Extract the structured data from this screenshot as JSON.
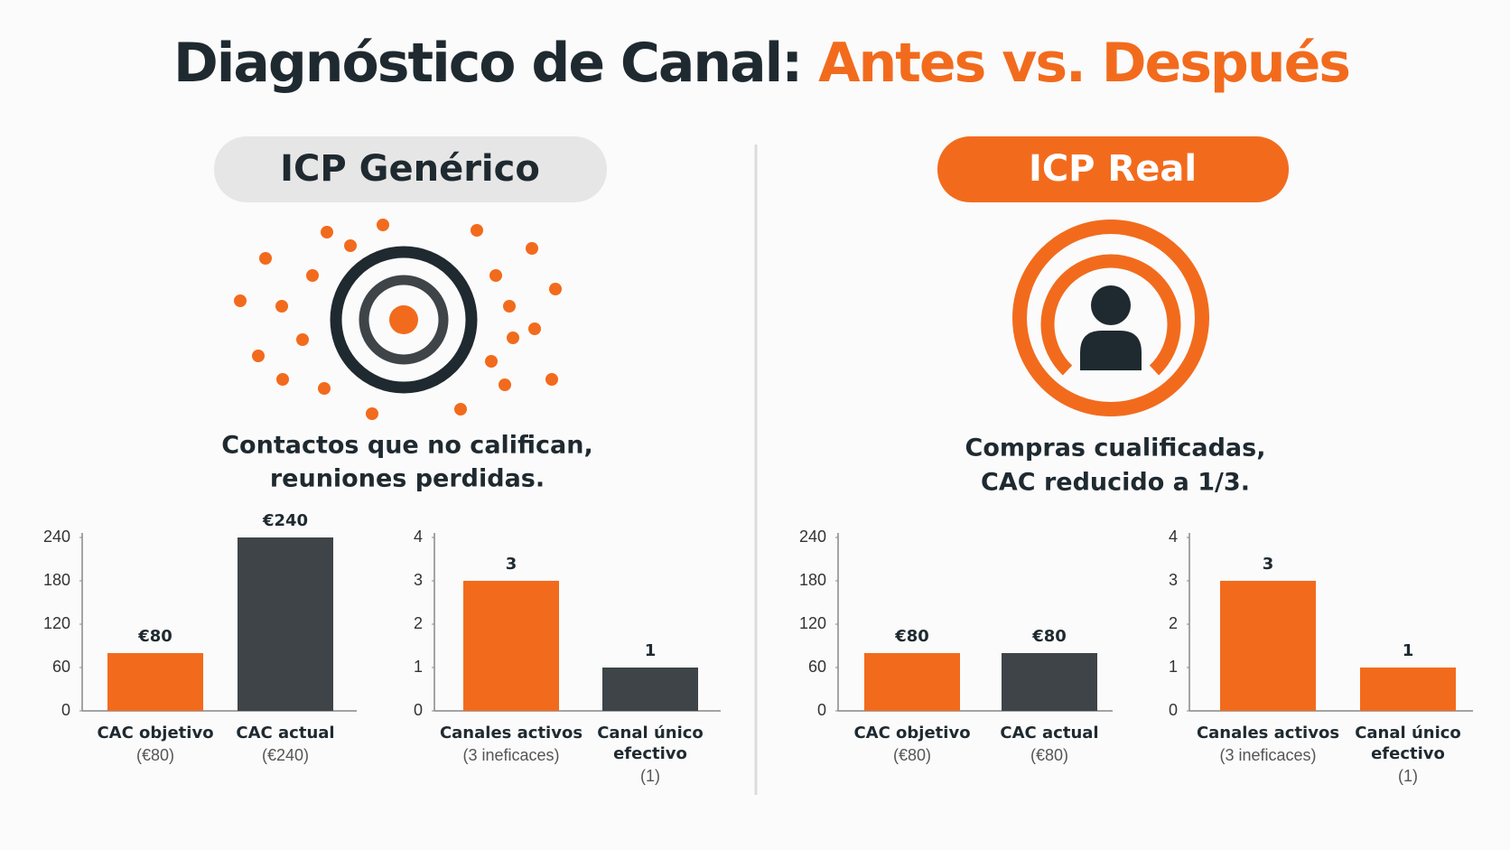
{
  "title": {
    "lead": "Diagnóstico de Canal: ",
    "accent": "Antes vs. Después"
  },
  "panels": [
    {
      "badge": "ICP Genérico",
      "caption": [
        "Contactos que no califican,",
        "reuniones perdidas."
      ]
    },
    {
      "badge": "ICP Real",
      "caption": [
        "Compras cualificadas,",
        "CAC reducido a 1/3."
      ]
    }
  ],
  "chart_data": [
    {
      "type": "bar",
      "categories": [
        [
          "CAC objetivo"
        ],
        [
          "CAC actual"
        ]
      ],
      "category_notes": [
        "(€80)",
        "(€240)"
      ],
      "values": [
        80,
        240
      ],
      "value_labels": [
        "€80",
        "€240"
      ],
      "colors": [
        "#f26b1d",
        "#3e4447"
      ],
      "ylim": [
        0,
        240
      ],
      "yticks": [
        0,
        60,
        120,
        180,
        240
      ]
    },
    {
      "type": "bar",
      "categories": [
        [
          "Canales activos"
        ],
        [
          "Canal único",
          "efectivo"
        ]
      ],
      "category_notes": [
        "(3 ineficaces)",
        "(1)"
      ],
      "values": [
        3,
        1
      ],
      "colors": [
        "#f26b1d",
        "#3e4447"
      ],
      "ylim": [
        0,
        4
      ],
      "yticks": [
        0,
        1,
        2,
        3,
        4
      ]
    },
    {
      "type": "bar",
      "categories": [
        [
          "CAC objetivo"
        ],
        [
          "CAC actual"
        ]
      ],
      "category_notes": [
        "(€80)",
        "(€80)"
      ],
      "values": [
        80,
        80
      ],
      "value_labels": [
        "€80",
        "€80"
      ],
      "colors": [
        "#f26b1d",
        "#3e4447"
      ],
      "ylim": [
        0,
        240
      ],
      "yticks": [
        0,
        60,
        120,
        180,
        240
      ]
    },
    {
      "type": "bar",
      "categories": [
        [
          "Canales activos"
        ],
        [
          "Canal único",
          "efectivo"
        ]
      ],
      "category_notes": [
        "(3 ineficaces)",
        "(1)"
      ],
      "values": [
        3,
        1
      ],
      "colors": [
        "#f26b1d",
        "#f26b1d"
      ],
      "ylim": [
        0,
        4
      ],
      "yticks": [
        0,
        1,
        2,
        3,
        4
      ]
    }
  ]
}
